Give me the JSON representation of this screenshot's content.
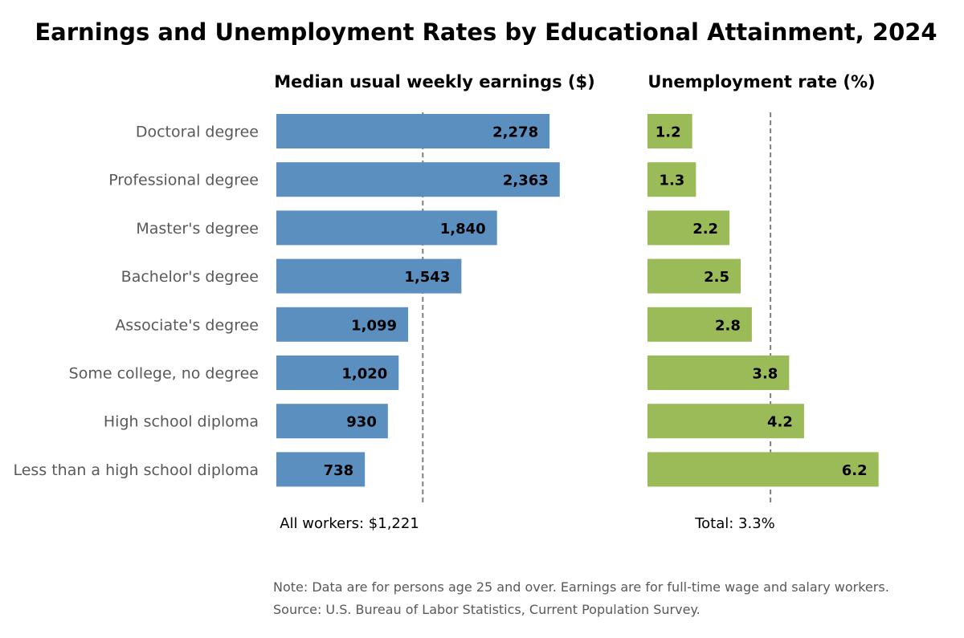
{
  "chart_data": [
    {
      "type": "bar",
      "orientation": "horizontal",
      "title": "Earnings and Unemployment Rates by Educational Attainment, 2024",
      "subtitle": "Median usual weekly earnings ($)",
      "categories": [
        "Doctoral degree",
        "Professional degree",
        "Master's degree",
        "Bachelor's degree",
        "Associate's degree",
        "Some college, no degree",
        "High school diploma",
        "Less than a high school diploma"
      ],
      "values": [
        2278,
        2363,
        1840,
        1543,
        1099,
        1020,
        930,
        738
      ],
      "value_labels": [
        "2,278",
        "2,363",
        "1,840",
        "1,543",
        "1,099",
        "1,020",
        "930",
        "738"
      ],
      "xlim": [
        0,
        2600
      ],
      "reference_value": 1221,
      "reference_label": "All workers: $1,221",
      "color": "#5b8fc0"
    },
    {
      "type": "bar",
      "orientation": "horizontal",
      "subtitle": "Unemployment rate (%)",
      "categories": [
        "Doctoral degree",
        "Professional degree",
        "Master's degree",
        "Bachelor's degree",
        "Associate's degree",
        "Some college, no degree",
        "High school diploma",
        "Less than a high school diploma"
      ],
      "values": [
        1.2,
        1.3,
        2.2,
        2.5,
        2.8,
        3.8,
        4.2,
        6.2
      ],
      "value_labels": [
        "1.2",
        "1.3",
        "2.2",
        "2.5",
        "2.8",
        "3.8",
        "4.2",
        "6.2"
      ],
      "xlim": [
        0,
        7
      ],
      "reference_value": 3.3,
      "reference_label": "Total: 3.3%",
      "color": "#9bbb59"
    }
  ],
  "notes": {
    "note": "Note: Data are for persons age 25 and over. Earnings are for full-time wage and salary workers.",
    "source": "Source: U.S. Bureau of Labor Statistics, Current Population Survey."
  }
}
